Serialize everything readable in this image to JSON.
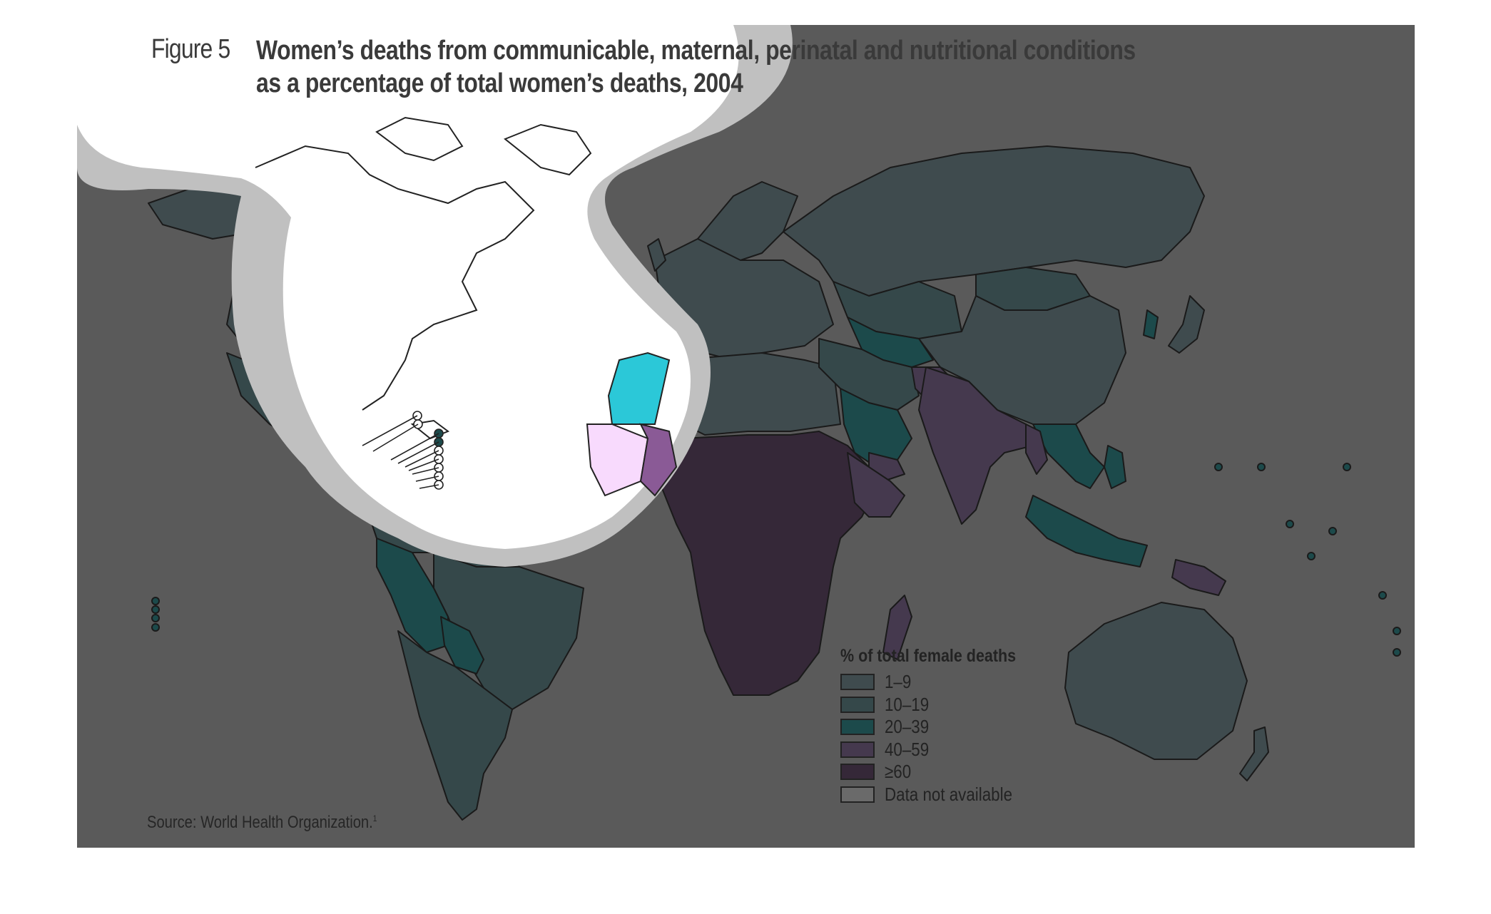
{
  "figure": {
    "label": "Figure 5",
    "title_line1": "Women’s deaths from communicable, maternal, perinatal and nutritional conditions",
    "title_line2": "as a percentage of total women’s deaths, 2004",
    "source": "Source: World Health Organization.",
    "source_ref": "1"
  },
  "legend": {
    "title": "% of total female deaths",
    "items": [
      {
        "label": "1–9",
        "color": "#3f4b4e"
      },
      {
        "label": "10–19",
        "color": "#35484a"
      },
      {
        "label": "20–39",
        "color": "#1c4a4b"
      },
      {
        "label": "40–59",
        "color": "#45394e"
      },
      {
        "label": "≥60",
        "color": "#352838"
      },
      {
        "label": "Data not available",
        "color": "#6a6a6a"
      }
    ]
  },
  "colors": {
    "background": "#5a5a5a",
    "highlight_glow": "#c0c0c0",
    "highlight_fill": "#ffffff",
    "borders": "#1a1a1a"
  }
}
